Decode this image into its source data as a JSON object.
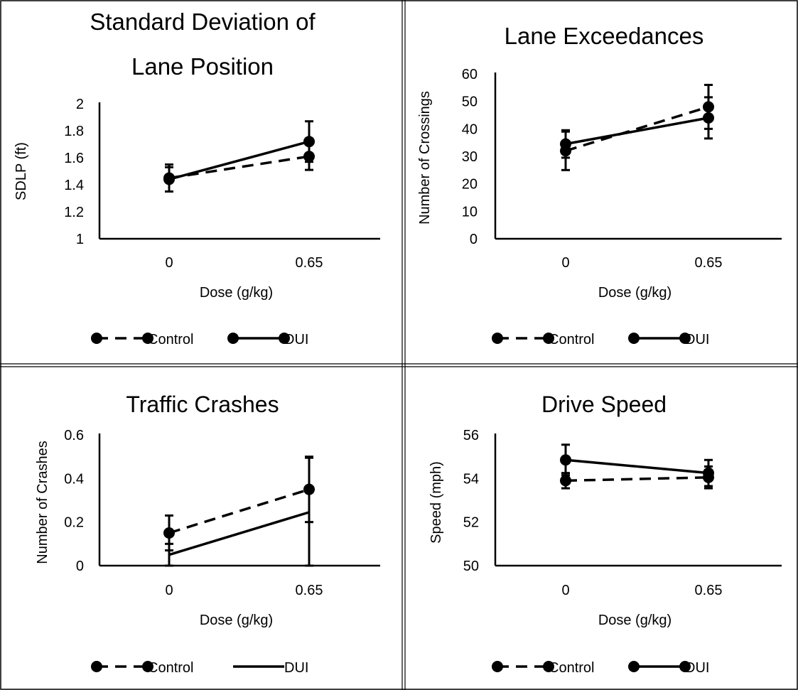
{
  "colors": {
    "ink": "#000000",
    "background": "#ffffff",
    "frame": "#000000"
  },
  "chart_data": [
    {
      "type": "line",
      "title": [
        "Standard Deviation of",
        "Lane Position"
      ],
      "xlabel": "Dose (g/kg)",
      "ylabel": "SDLP (ft)",
      "categories": [
        "0",
        "0.65"
      ],
      "ylim": [
        1,
        2
      ],
      "yticks": [
        1,
        1.2,
        1.4,
        1.6,
        1.8,
        2
      ],
      "yticklabels": [
        "1",
        "1.2",
        "1.4",
        "1.6",
        "1.8",
        "2"
      ],
      "legend_position": "bottom",
      "series": [
        {
          "name": "Control",
          "style": "dashed",
          "markers": true,
          "values": [
            1.45,
            1.61
          ],
          "errors": [
            0.1,
            0.1
          ]
        },
        {
          "name": "DUI",
          "style": "solid",
          "markers": true,
          "values": [
            1.44,
            1.72
          ],
          "errors": [
            0.09,
            0.15
          ]
        }
      ]
    },
    {
      "type": "line",
      "title": [
        "Lane Exceedances"
      ],
      "xlabel": "Dose (g/kg)",
      "ylabel": "Number of Crossings",
      "categories": [
        "0",
        "0.65"
      ],
      "ylim": [
        0,
        60
      ],
      "yticks": [
        0,
        10,
        20,
        30,
        40,
        50,
        60
      ],
      "yticklabels": [
        "0",
        "10",
        "20",
        "30",
        "40",
        "50",
        "60"
      ],
      "legend_position": "bottom",
      "series": [
        {
          "name": "Control",
          "style": "dashed",
          "markers": true,
          "values": [
            32,
            48
          ],
          "errors": [
            7,
            8
          ]
        },
        {
          "name": "DUI",
          "style": "solid",
          "markers": true,
          "values": [
            34.5,
            44
          ],
          "errors": [
            5,
            7.5
          ]
        }
      ]
    },
    {
      "type": "line",
      "title": [
        "Traffic Crashes"
      ],
      "xlabel": "Dose (g/kg)",
      "ylabel": "Number of Crashes",
      "categories": [
        "0",
        "0.65"
      ],
      "ylim": [
        0,
        0.6
      ],
      "yticks": [
        0,
        0.2,
        0.4,
        0.6
      ],
      "yticklabels": [
        "0",
        "0.2",
        "0.4",
        "0.6"
      ],
      "legend_position": "bottom",
      "series": [
        {
          "name": "Control",
          "style": "dashed",
          "markers": true,
          "values": [
            0.15,
            0.35
          ],
          "errors": [
            0.08,
            0.15
          ]
        },
        {
          "name": "DUI",
          "style": "solid",
          "markers": false,
          "values": [
            0.05,
            0.245
          ],
          "errors": [
            0.05,
            0.25
          ]
        }
      ]
    },
    {
      "type": "line",
      "title": [
        "Drive Speed"
      ],
      "xlabel": "Dose (g/kg)",
      "ylabel": "Speed (mph)",
      "categories": [
        "0",
        "0.65"
      ],
      "ylim": [
        50,
        56
      ],
      "yticks": [
        50,
        52,
        54,
        56
      ],
      "yticklabels": [
        "50",
        "52",
        "54",
        "56"
      ],
      "legend_position": "bottom",
      "series": [
        {
          "name": "Control",
          "style": "dashed",
          "markers": true,
          "values": [
            53.9,
            54.05
          ],
          "errors": [
            0.35,
            0.5
          ]
        },
        {
          "name": "DUI",
          "style": "solid",
          "markers": true,
          "values": [
            54.85,
            54.25
          ],
          "errors": [
            0.7,
            0.6
          ]
        }
      ]
    }
  ]
}
